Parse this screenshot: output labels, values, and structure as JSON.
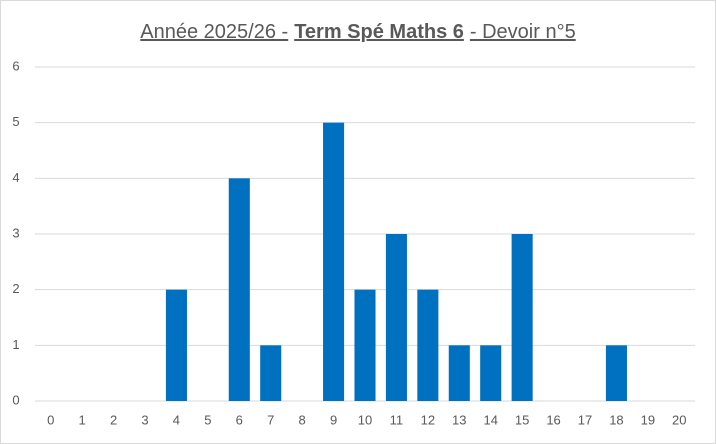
{
  "chart_data": {
    "type": "bar",
    "title_parts": [
      "Année 2025/26 -",
      "Term Spé Maths 6",
      "- Devoir n°5"
    ],
    "categories": [
      "0",
      "1",
      "2",
      "3",
      "4",
      "5",
      "6",
      "7",
      "8",
      "9",
      "10",
      "11",
      "12",
      "13",
      "14",
      "15",
      "16",
      "17",
      "18",
      "19",
      "20"
    ],
    "values": [
      0,
      0,
      0,
      0,
      2,
      0,
      4,
      1,
      0,
      5,
      2,
      3,
      2,
      1,
      1,
      3,
      0,
      0,
      1,
      0,
      0
    ],
    "color": "#0070c0",
    "ylim": [
      0,
      6
    ],
    "yticks": [
      0,
      1,
      2,
      3,
      4,
      5,
      6
    ],
    "grid": true
  }
}
